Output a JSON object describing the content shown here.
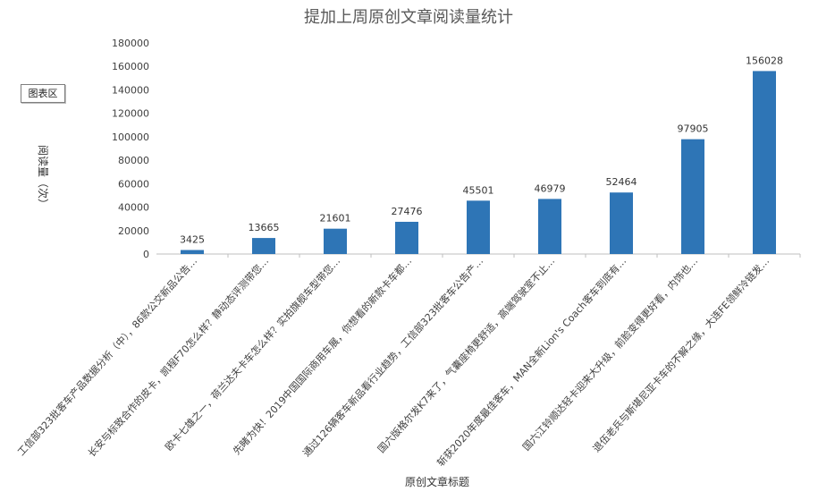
{
  "chart_data": {
    "type": "bar",
    "title": "提加上周原创文章阅读量统计",
    "xlabel": "原创文章标题",
    "ylabel": "阅读量（次）",
    "ylim": [
      0,
      180000
    ],
    "yticks": [
      0,
      20000,
      40000,
      60000,
      80000,
      100000,
      120000,
      140000,
      160000,
      180000
    ],
    "grid": false,
    "categories": [
      "工信部323批客车产品数据分析（中），86款公交新品公告…",
      "长安与标致合作的皮卡，凯程F70怎么样？静动态评测带您…",
      "欧卡七雄之一，荷兰达夫卡车怎么样？实拍旗舰车型带您…",
      "先睹为快！2019中国国际商用车展，你想看的新款卡车都…",
      "通过126辆客车新品看行业趋势，工信部323批客车公告产…",
      "国六版格尔发K7来了，气囊座椅更舒适，高端驾驶室不止…",
      "斩获2020年度最佳客车，MAN全新Lion's Coach客车到底有…",
      "国六江铃顺达轻卡迎来大升级，前脸变得更好看，内饰也…",
      "退伍老兵与斯堪尼亚卡车的不解之缘，大连FE领鲜冷链发…"
    ],
    "values": [
      3425,
      13665,
      21601,
      27476,
      45501,
      46979,
      52464,
      97905,
      156028
    ],
    "bar_color": "#2e75b6"
  },
  "chart_area_label": "图表区"
}
